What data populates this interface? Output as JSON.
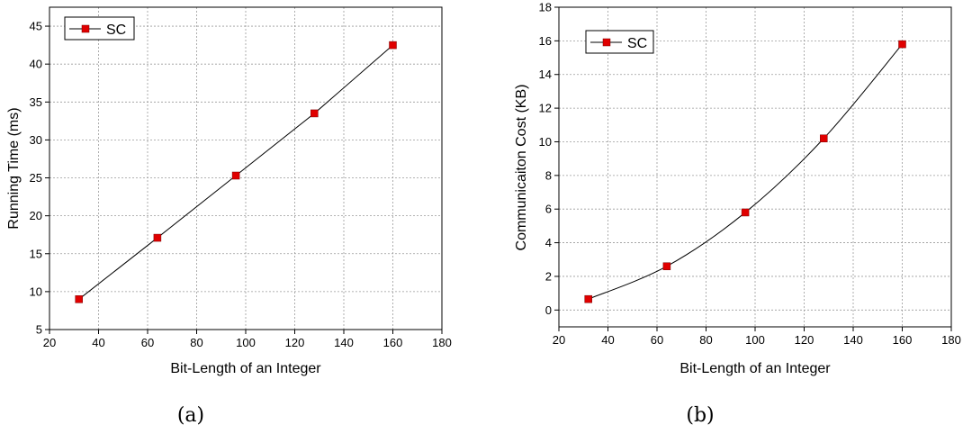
{
  "chart_data": [
    {
      "type": "line",
      "caption": "(a)",
      "xlabel": "Bit-Length of an Integer",
      "ylabel": "Running Time (ms)",
      "xlim": [
        20,
        180
      ],
      "ylim": [
        5,
        47.5
      ],
      "xticks": [
        20,
        40,
        60,
        80,
        100,
        120,
        140,
        160,
        180
      ],
      "yticks": [
        5,
        10,
        15,
        20,
        25,
        30,
        35,
        40,
        45
      ],
      "legend_position": "top-left",
      "series": [
        {
          "name": "SC",
          "color": "#e00000",
          "x": [
            32,
            64,
            96,
            128,
            160
          ],
          "values": [
            9.0,
            17.1,
            25.3,
            33.5,
            42.5
          ]
        }
      ]
    },
    {
      "type": "line",
      "caption": "(b)",
      "xlabel": "Bit-Length of an Integer",
      "ylabel": "Communicaiton Cost (KB)",
      "xlim": [
        20,
        180
      ],
      "ylim": [
        -1,
        18
      ],
      "xticks": [
        20,
        40,
        60,
        80,
        100,
        120,
        140,
        160,
        180
      ],
      "yticks": [
        0,
        2,
        4,
        6,
        8,
        10,
        12,
        14,
        16,
        18
      ],
      "legend_position": "top-left",
      "series": [
        {
          "name": "SC",
          "color": "#e00000",
          "x": [
            32,
            64,
            96,
            128,
            160
          ],
          "values": [
            0.65,
            2.6,
            5.8,
            10.2,
            15.8
          ]
        }
      ]
    }
  ]
}
